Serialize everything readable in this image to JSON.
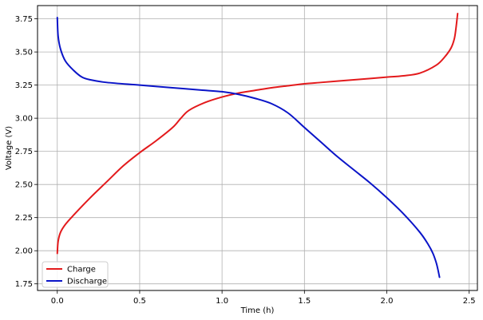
{
  "chart_data": {
    "type": "line",
    "title": "",
    "xlabel": "Time (h)",
    "ylabel": "Voltage (V)",
    "xlim": [
      -0.12,
      2.55
    ],
    "ylim": [
      1.7,
      3.85
    ],
    "xticks": [
      0.0,
      0.5,
      1.0,
      1.5,
      2.0,
      2.5
    ],
    "xtick_labels": [
      "0.0",
      "0.5",
      "1.0",
      "1.5",
      "2.0",
      "2.5"
    ],
    "yticks": [
      1.75,
      2.0,
      2.25,
      2.5,
      2.75,
      3.0,
      3.25,
      3.5,
      3.75
    ],
    "ytick_labels": [
      "1.75",
      "2.00",
      "2.25",
      "2.50",
      "2.75",
      "3.00",
      "3.25",
      "3.50",
      "3.75"
    ],
    "grid": true,
    "legend_position": "lower-left",
    "series": [
      {
        "name": "Charge",
        "color": "#e31a1c",
        "x": [
          0.0,
          0.005,
          0.02,
          0.05,
          0.1,
          0.2,
          0.3,
          0.4,
          0.5,
          0.6,
          0.7,
          0.75,
          0.8,
          0.9,
          1.0,
          1.1,
          1.2,
          1.3,
          1.4,
          1.5,
          1.6,
          1.7,
          1.8,
          1.9,
          2.0,
          2.1,
          2.2,
          2.3,
          2.35,
          2.39,
          2.41,
          2.42,
          2.43
        ],
        "y": [
          1.98,
          2.07,
          2.14,
          2.2,
          2.27,
          2.4,
          2.52,
          2.64,
          2.74,
          2.83,
          2.93,
          3.0,
          3.06,
          3.12,
          3.16,
          3.19,
          3.21,
          3.23,
          3.245,
          3.26,
          3.27,
          3.28,
          3.29,
          3.3,
          3.31,
          3.32,
          3.34,
          3.4,
          3.46,
          3.53,
          3.6,
          3.68,
          3.79
        ]
      },
      {
        "name": "Discharge",
        "color": "#0a14c8",
        "x": [
          0.0,
          0.005,
          0.02,
          0.05,
          0.1,
          0.15,
          0.2,
          0.3,
          0.5,
          0.7,
          0.9,
          1.0,
          1.1,
          1.2,
          1.3,
          1.4,
          1.5,
          1.6,
          1.7,
          1.8,
          1.9,
          2.0,
          2.1,
          2.2,
          2.25,
          2.28,
          2.3,
          2.31,
          2.32
        ],
        "y": [
          3.76,
          3.62,
          3.52,
          3.43,
          3.36,
          3.31,
          3.29,
          3.27,
          3.25,
          3.23,
          3.21,
          3.2,
          3.18,
          3.15,
          3.11,
          3.04,
          2.93,
          2.82,
          2.71,
          2.61,
          2.51,
          2.4,
          2.28,
          2.14,
          2.05,
          1.98,
          1.91,
          1.86,
          1.8
        ]
      }
    ]
  }
}
